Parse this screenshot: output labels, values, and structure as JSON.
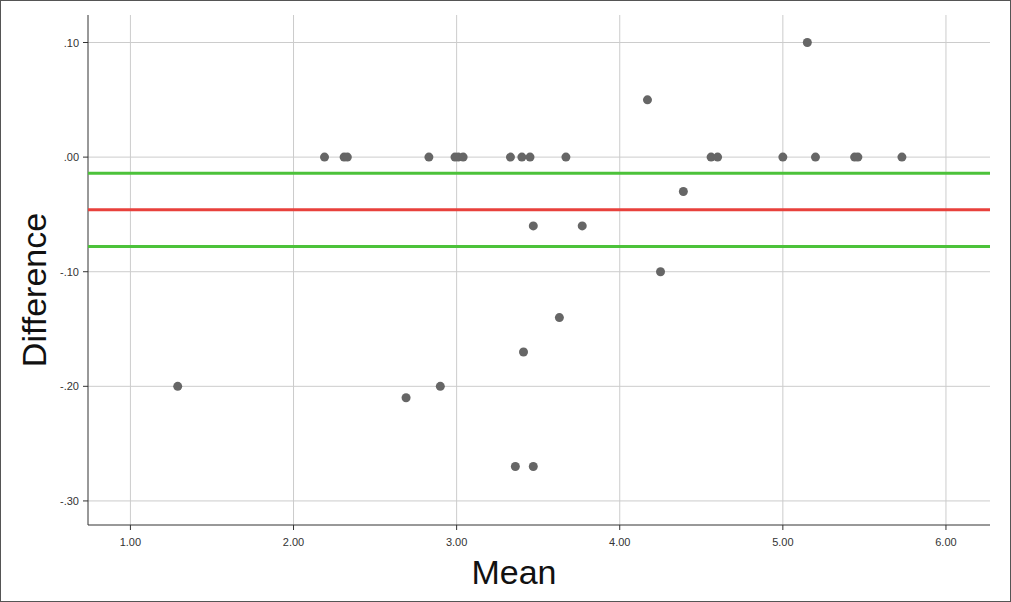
{
  "chart_data": {
    "type": "scatter",
    "x_label": "Mean",
    "y_label": "Difference",
    "xlim": [
      0.74,
      6.27
    ],
    "ylim": [
      -0.321,
      0.124
    ],
    "xticks": [
      {
        "value": 1,
        "label": "1.00"
      },
      {
        "value": 2,
        "label": "2.00"
      },
      {
        "value": 3,
        "label": "3.00"
      },
      {
        "value": 4,
        "label": "4.00"
      },
      {
        "value": 5,
        "label": "5.00"
      },
      {
        "value": 6,
        "label": "6.00"
      }
    ],
    "yticks": [
      {
        "value": 0.1,
        "label": ".10"
      },
      {
        "value": 0,
        "label": ".00"
      },
      {
        "value": -0.1,
        "label": "-.10"
      },
      {
        "value": -0.2,
        "label": "-.20"
      },
      {
        "value": -0.3,
        "label": "-.30"
      }
    ],
    "grid": true,
    "color": "#666666",
    "marker": "circle",
    "x": [
      1.29,
      2.19,
      2.31,
      2.33,
      2.83,
      2.99,
      3.01,
      3.04,
      2.69,
      2.9,
      3.33,
      3.4,
      3.45,
      3.47,
      3.36,
      3.47,
      3.41,
      3.63,
      3.67,
      3.77,
      4.17,
      4.39,
      4.25,
      4.56,
      4.6,
      5.0,
      5.15,
      5.2,
      5.44,
      5.46,
      5.73
    ],
    "values": [
      -0.2,
      0,
      0,
      0,
      0,
      0,
      0,
      0,
      -0.21,
      -0.2,
      0,
      0,
      0,
      -0.06,
      -0.27,
      -0.27,
      -0.17,
      -0.14,
      0,
      -0.06,
      0.05,
      -0.03,
      -0.1,
      0,
      0,
      0,
      0.1,
      0,
      0,
      0,
      0
    ],
    "lines": [
      {
        "value": -0.046,
        "color": "#e8413c"
      },
      {
        "value": -0.014,
        "color": "#4cc23a"
      },
      {
        "value": -0.078,
        "color": "#4cc23a"
      }
    ]
  }
}
